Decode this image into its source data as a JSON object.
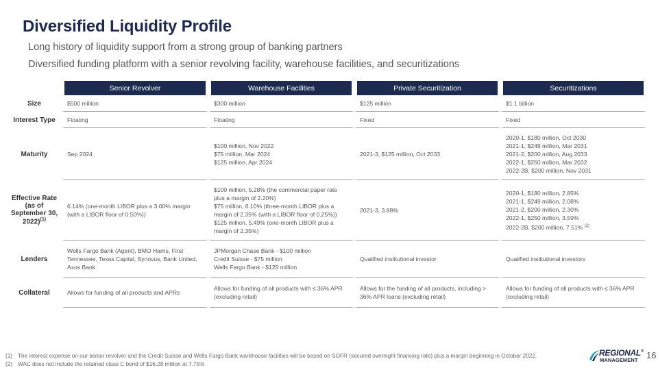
{
  "slide": {
    "title": "Diversified Liquidity Profile",
    "bullets": [
      "Long history of liquidity support from a strong group of banking partners",
      "Diversified funding platform with a senior revolving facility, warehouse facilities, and securitizations"
    ],
    "page_number": "16"
  },
  "colors": {
    "header_bg": "#1c2a4f",
    "title": "#1c2a4f",
    "logo_teal": "#2aa0c0"
  },
  "table": {
    "columns": [
      "Senior Revolver",
      "Warehouse Facilities",
      "Private Securitization",
      "Securitizations"
    ],
    "rows": [
      {
        "label": "Size",
        "cells": [
          "$500 million",
          "$300 million",
          "$125 million",
          "$1.1 billion"
        ]
      },
      {
        "label": "Interest Type",
        "cells": [
          "Floating",
          "Floating",
          "Fixed",
          "Fixed"
        ]
      },
      {
        "label": "Maturity",
        "cells": [
          "Sep 2024",
          "$100 million, Nov 2022\n$75 million, Mar 2024\n$125 million, Apr 2024",
          "2021-3, $125 million, Oct 2033",
          "2020-1, $180 million, Oct 2030\n2021-1, $249 million, Mar 2031\n2021-2, $200 million, Aug 2033\n2022-1, $250 million, Mar 2032\n2022-2B, $200 million, Nov 2031"
        ]
      },
      {
        "label": "Effective Rate (as of September 30, 2022)",
        "label_sup": "(1)",
        "cells": [
          "6.14% (one-month LIBOR plus a 3.00% margin (with a LIBOR floor of 0.50%))",
          "$100 million, 5.28% (the commercial paper rate plus a margin of 2.20%)\n$75 million, 6.10% (three-month LIBOR plus a margin of 2.35% (with a LIBOR floor of 0.25%))\n$125 million, 5.49% (one-month LIBOR plus a margin of 2.35%)",
          "2021-3, 3.88%",
          "2020-1, $180 million, 2.85%\n2021-1, $249 million, 2.08%\n2021-2, $200 million, 2.30%\n2022-1, $250 million, 3.59%\n2022-2B, $200 million, 7.51%"
        ],
        "last_cell_sup": "(2)"
      },
      {
        "label": "Lenders",
        "cells": [
          "Wells Fargo Bank (Agent), BMO Harris, First Tennessee, Texas Capital, Synovus, Bank United, Axos Bank",
          "JPMorgan Chase Bank - $100 million\nCredit Suisse - $75 million\nWells Fargo Bank - $125 million",
          "Qualified institutional investor",
          "Qualified institutional investors"
        ]
      },
      {
        "label": "Collateral",
        "cells": [
          "Allows for funding of all products and APRs",
          "Allows for funding of all products with ≤ 36% APR (excluding retail)",
          "Allows for the funding of all products, including > 36% APR loans (excluding retail)",
          "Allows for funding of all products with ≤ 36% APR (excluding retail)"
        ]
      }
    ]
  },
  "footnotes": [
    {
      "num": "(1)",
      "text": "The interest expense on our senior revolver and the Credit Suisse and Wells Fargo Bank warehouse facilities will be based on SOFR (secured overnight financing rate) plus a margin beginning in October 2022."
    },
    {
      "num": "(2)",
      "text": "WAC does not include the retained class C bond of $16.28 million at 7.75%"
    }
  ],
  "logo": {
    "line1": "REGIONAL",
    "line2": "MANAGEMENT",
    "reg_mark": "®"
  }
}
